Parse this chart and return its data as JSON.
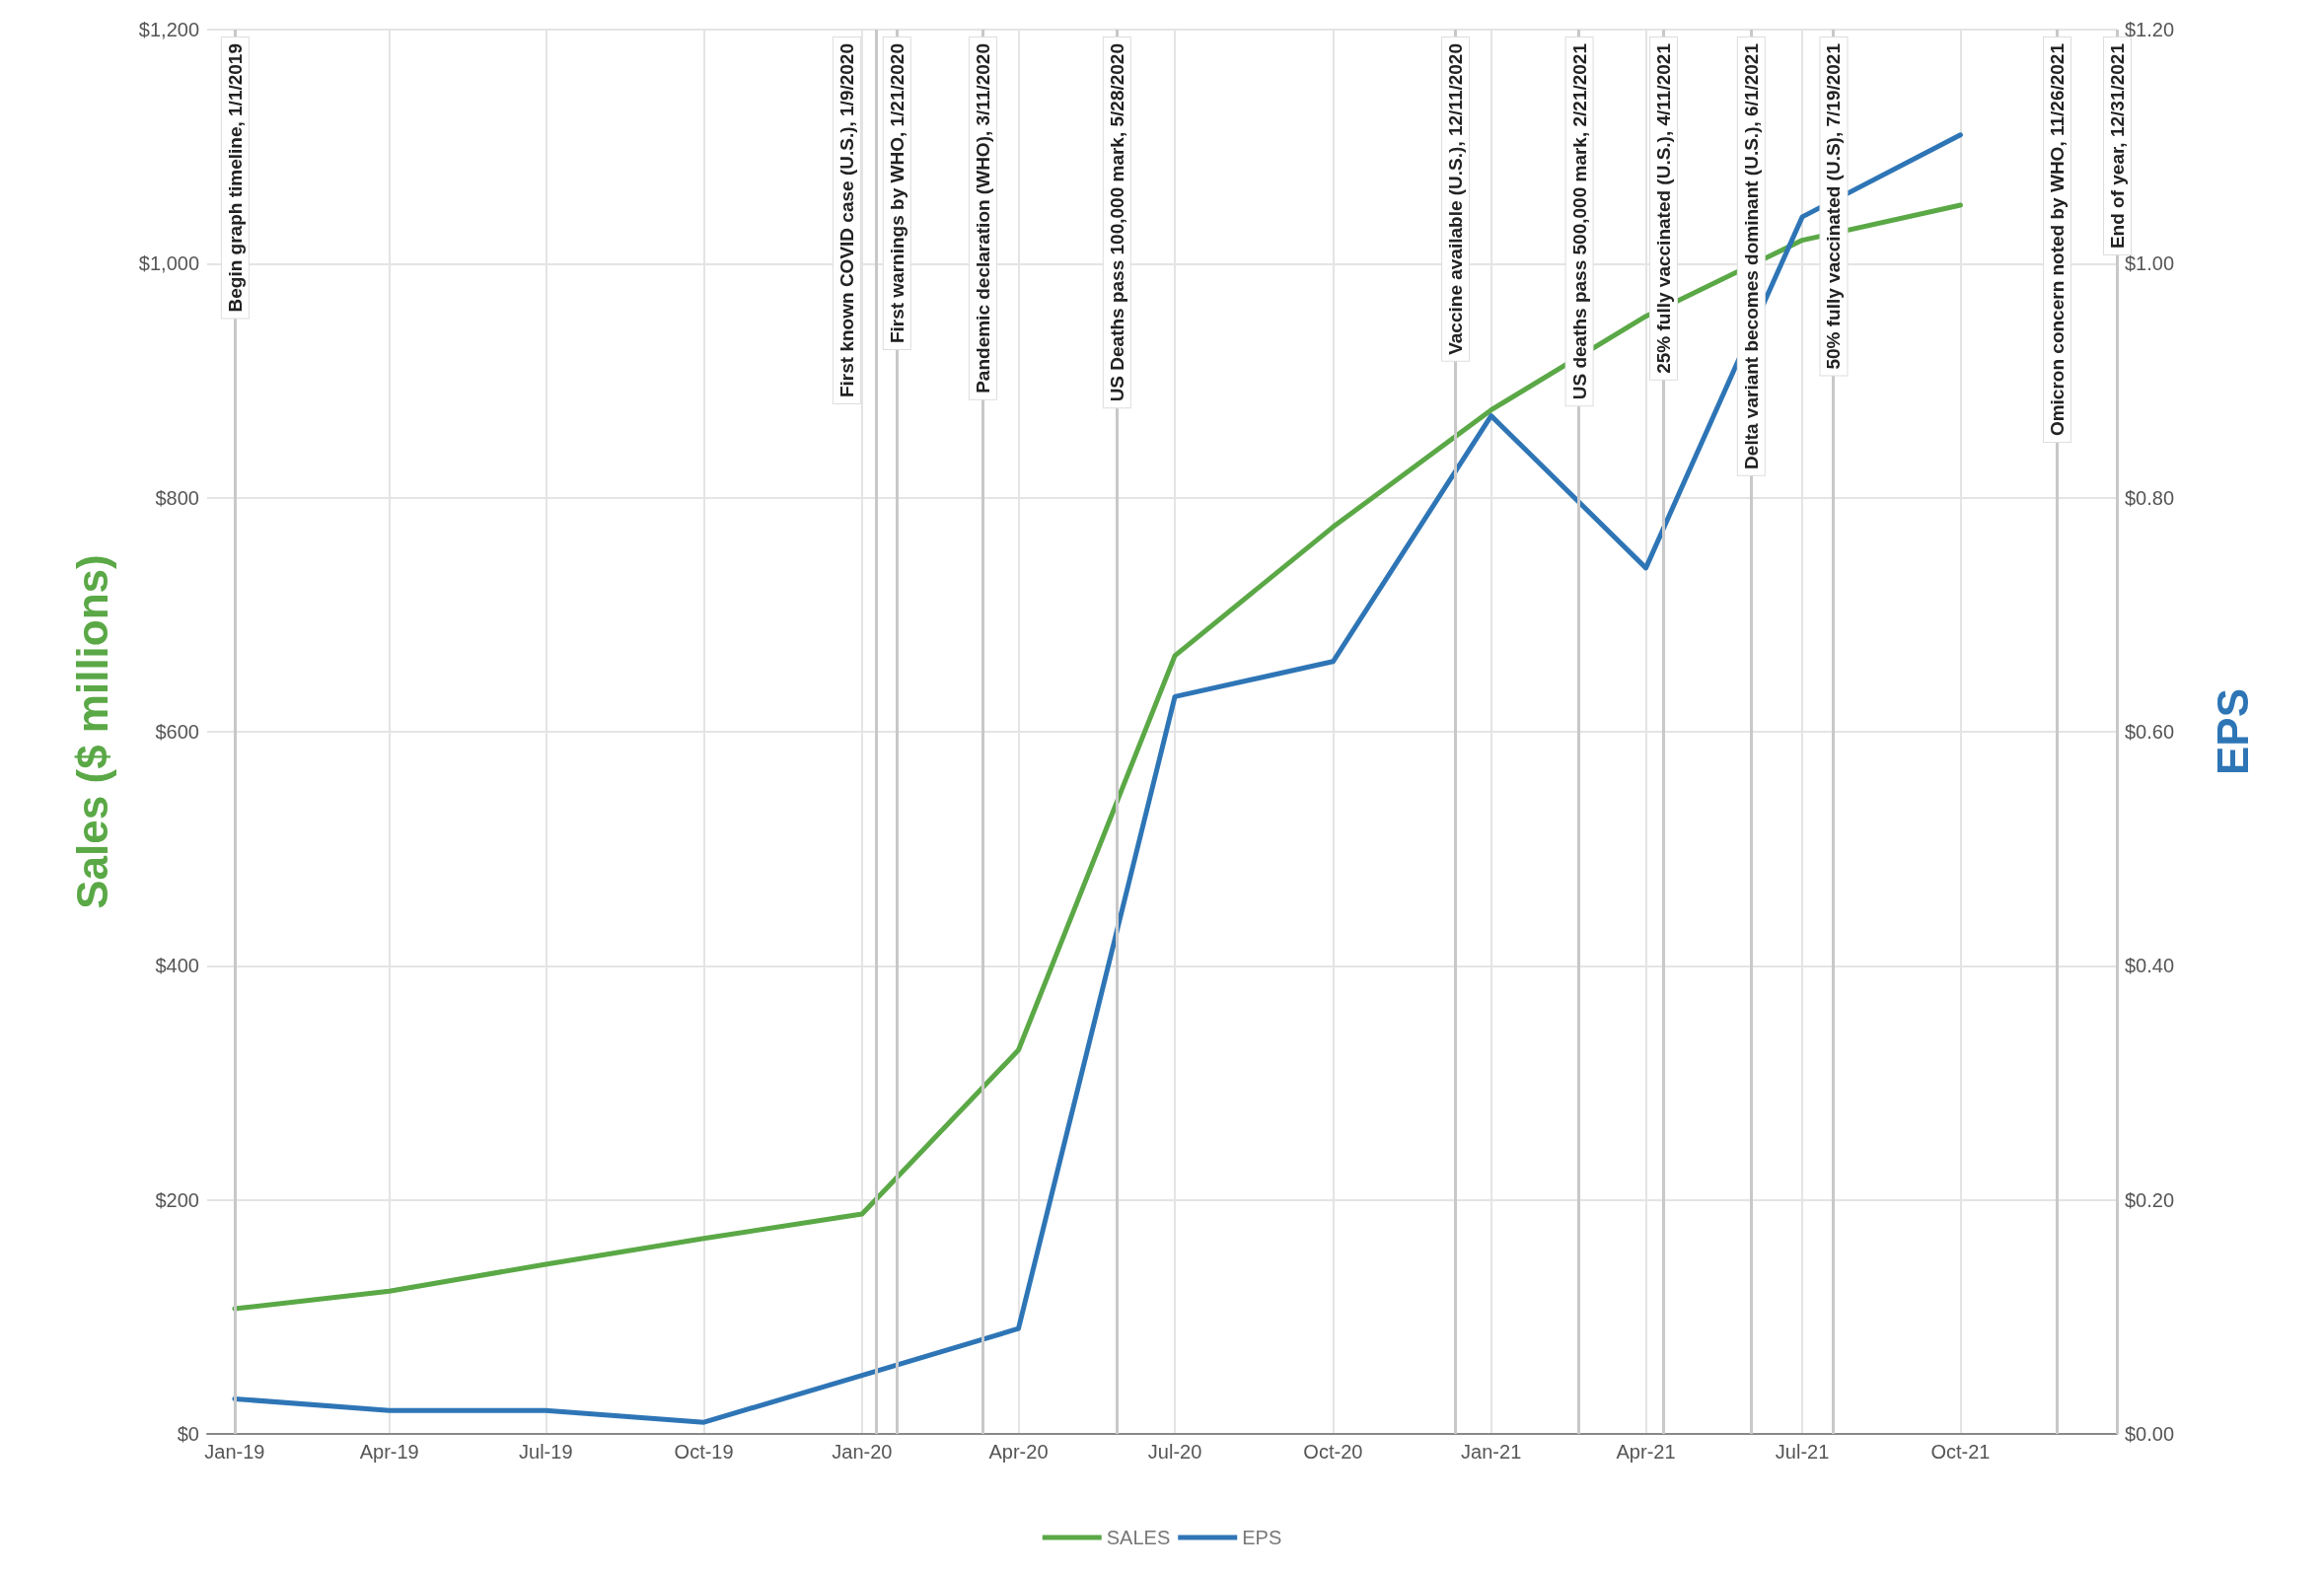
{
  "chart_data": {
    "type": "line",
    "ylabel": "Sales ($ millions)",
    "y2label": "EPS",
    "x": [
      "2019-01-01",
      "2019-04-01",
      "2019-07-01",
      "2019-10-01",
      "2020-01-01",
      "2020-04-01",
      "2020-07-01",
      "2020-10-01",
      "2021-01-01",
      "2021-04-01",
      "2021-07-01",
      "2021-10-01"
    ],
    "series": [
      {
        "name": "SALES",
        "color": "#5aa846",
        "values": [
          107,
          122,
          145,
          167,
          188,
          328,
          665,
          775,
          875,
          955,
          1020,
          1050
        ]
      },
      {
        "name": "EPS",
        "color": "#2e75b6",
        "axis": "y2",
        "values": [
          0.03,
          0.02,
          0.02,
          0.01,
          0.05,
          0.09,
          0.63,
          0.66,
          0.87,
          0.74,
          1.04,
          1.11
        ]
      }
    ],
    "xlim": [
      "2018-12-16",
      "2021-12-31"
    ],
    "xticks": [
      {
        "value": "2019-01-01",
        "label": "Jan-19"
      },
      {
        "value": "2019-04-01",
        "label": "Apr-19"
      },
      {
        "value": "2019-07-01",
        "label": "Jul-19"
      },
      {
        "value": "2019-10-01",
        "label": "Oct-19"
      },
      {
        "value": "2020-01-01",
        "label": "Jan-20"
      },
      {
        "value": "2020-04-01",
        "label": "Apr-20"
      },
      {
        "value": "2020-07-01",
        "label": "Jul-20"
      },
      {
        "value": "2020-10-01",
        "label": "Oct-20"
      },
      {
        "value": "2021-01-01",
        "label": "Jan-21"
      },
      {
        "value": "2021-04-01",
        "label": "Apr-21"
      },
      {
        "value": "2021-07-01",
        "label": "Jul-21"
      },
      {
        "value": "2021-10-01",
        "label": "Oct-21"
      }
    ],
    "ylim": [
      0,
      1200
    ],
    "yticks": [
      {
        "value": 0,
        "label": "$0"
      },
      {
        "value": 200,
        "label": "$200"
      },
      {
        "value": 400,
        "label": "$400"
      },
      {
        "value": 600,
        "label": "$600"
      },
      {
        "value": 800,
        "label": "$800"
      },
      {
        "value": 1000,
        "label": "$1,000"
      },
      {
        "value": 1200,
        "label": "$1,200"
      }
    ],
    "y2lim": [
      0,
      1.2
    ],
    "y2ticks": [
      {
        "value": 0,
        "label": "$0.00"
      },
      {
        "value": 0.2,
        "label": "$0.20"
      },
      {
        "value": 0.4,
        "label": "$0.40"
      },
      {
        "value": 0.6,
        "label": "$0.60"
      },
      {
        "value": 0.8,
        "label": "$0.80"
      },
      {
        "value": 1.0,
        "label": "$1.00"
      },
      {
        "value": 1.2,
        "label": "$1.20"
      }
    ],
    "ref_lines": [
      {
        "axis": "x",
        "value": "2019-01-01",
        "label": "Begin graph timeline, 1/1/2019"
      },
      {
        "axis": "x",
        "value": "2020-01-09",
        "label": "First known COVID case (U.S.), 1/9/2020"
      },
      {
        "axis": "x",
        "value": "2020-01-21",
        "label": "First warnings by WHO, 1/21/2020"
      },
      {
        "axis": "x",
        "value": "2020-03-11",
        "label": "Pandemic declaration (WHO), 3/11/2020"
      },
      {
        "axis": "x",
        "value": "2020-05-28",
        "label": "US Deaths pass 100,000 mark, 5/28/2020"
      },
      {
        "axis": "x",
        "value": "2020-12-11",
        "label": "Vaccine available (U.S.), 12/11/2020"
      },
      {
        "axis": "x",
        "value": "2021-02-21",
        "label": "US deaths pass 500,000 mark, 2/21/2021"
      },
      {
        "axis": "x",
        "value": "2021-04-11",
        "label": "25% fully vaccinated (U.S.), 4/11/2021"
      },
      {
        "axis": "x",
        "value": "2021-06-01",
        "label": "Delta variant becomes dominant (U.S.), 6/1/2021"
      },
      {
        "axis": "x",
        "value": "2021-07-19",
        "label": "50% fully vaccinated (U.S), 7/19/2021"
      },
      {
        "axis": "x",
        "value": "2021-11-26",
        "label": "Omicron concern noted by WHO, 11/26/2021"
      },
      {
        "axis": "x",
        "value": "2021-12-31",
        "label": "End of year, 12/31/2021"
      }
    ],
    "grid": true,
    "legend": "bottom",
    "marker": "none",
    "line_style": "solid"
  }
}
